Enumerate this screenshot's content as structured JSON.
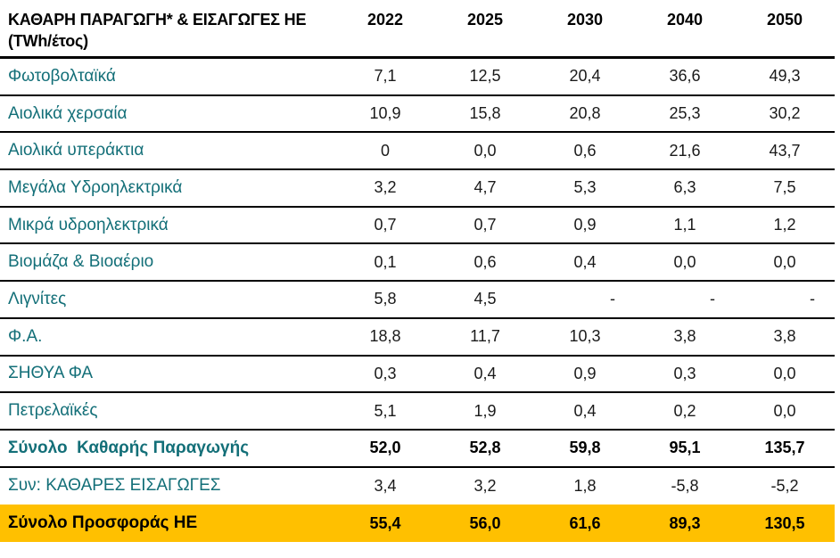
{
  "colors": {
    "teal": "#136f78",
    "highlight": "#ffc000"
  },
  "table": {
    "title_line1": "ΚΑΘΑΡΗ ΠΑΡΑΓΩΓΗ* & ΕΙΣΑΓΩΓΕΣ ΗΕ",
    "title_line2": "(TWh/έτος)",
    "years": [
      "2022",
      "2025",
      "2030",
      "2040",
      "2050"
    ],
    "rows": [
      {
        "label": "Φωτοβολταϊκά",
        "values": [
          "7,1",
          "12,5",
          "20,4",
          "36,6",
          "49,3"
        ],
        "style": "normal"
      },
      {
        "label": "Αιολικά χερσαία",
        "values": [
          "10,9",
          "15,8",
          "20,8",
          "25,3",
          "30,2"
        ],
        "style": "normal"
      },
      {
        "label": "Αιολικά υπεράκτια",
        "values": [
          "0",
          "0,0",
          "0,6",
          "21,6",
          "43,7"
        ],
        "style": "normal"
      },
      {
        "label": "Μεγάλα Υδροηλεκτρικά",
        "values": [
          "3,2",
          "4,7",
          "5,3",
          "6,3",
          "7,5"
        ],
        "style": "normal"
      },
      {
        "label": "Μικρά υδροηλεκτρικά",
        "values": [
          "0,7",
          "0,7",
          "0,9",
          "1,1",
          "1,2"
        ],
        "style": "normal"
      },
      {
        "label": "Βιομάζα & Βιοαέριο",
        "values": [
          "0,1",
          "0,6",
          "0,4",
          "0,0",
          "0,0"
        ],
        "style": "normal"
      },
      {
        "label": "Λιγνίτες",
        "values": [
          "5,8",
          "4,5",
          "-",
          "-",
          "-"
        ],
        "style": "normal"
      },
      {
        "label": "Φ.Α.",
        "values": [
          "18,8",
          "11,7",
          "10,3",
          "3,8",
          "3,8"
        ],
        "style": "normal"
      },
      {
        "label": "ΣΗΘΥΑ ΦΑ",
        "values": [
          "0,3",
          "0,4",
          "0,9",
          "0,3",
          "0,0"
        ],
        "style": "normal"
      },
      {
        "label": "Πετρελαϊκές",
        "values": [
          "5,1",
          "1,9",
          "0,4",
          "0,2",
          "0,0"
        ],
        "style": "normal"
      },
      {
        "label": "Σύνολο  Καθαρής Παραγωγής",
        "values": [
          "52,0",
          "52,8",
          "59,8",
          "95,1",
          "135,7"
        ],
        "style": "subtotal"
      },
      {
        "label": "Συν: ΚΑΘΑΡΕΣ ΕΙΣΑΓΩΓΕΣ",
        "values": [
          "3,4",
          "3,2",
          "1,8",
          "-5,8",
          "-5,2"
        ],
        "style": "imports"
      },
      {
        "label": "Σύνολο Προσφοράς ΗΕ",
        "values": [
          "55,4",
          "56,0",
          "61,6",
          "89,3",
          "130,5"
        ],
        "style": "total"
      }
    ]
  }
}
